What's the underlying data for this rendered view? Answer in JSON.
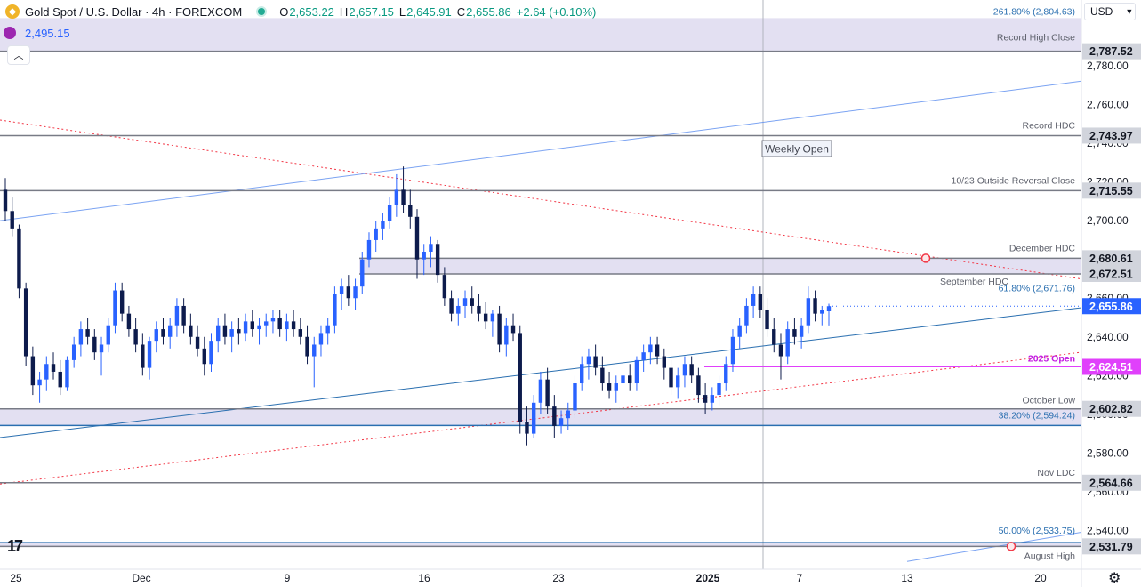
{
  "header": {
    "symbol": "Gold Spot / U.S. Dollar · 4h · FOREXCOM",
    "open_label": "O",
    "open": "2,653.22",
    "high_label": "H",
    "high": "2,657.15",
    "low_label": "L",
    "low": "2,645.91",
    "close_label": "C",
    "close": "2,655.86",
    "change": "+2.64 (+0.10%)"
  },
  "indicator_value": "2,495.15",
  "currency": "USD",
  "colors": {
    "up": "#2962ff",
    "down": "#0d1b4c",
    "level": "#787b86",
    "trend_red": "#f23645",
    "trend_blue": "#5b8def",
    "zone": "#d9d6ee",
    "current_price": "#2962ff",
    "open_2025": "#e040fb"
  },
  "chart_data": {
    "type": "candlestick",
    "x_tick_labels": [
      "25",
      "Dec",
      "9",
      "16",
      "23",
      "2025",
      "7",
      "13",
      "20"
    ],
    "y_ticks": [
      2540,
      2560,
      2580,
      2600,
      2620,
      2640,
      2660,
      2680,
      2700,
      2720,
      2740,
      2760,
      2780
    ],
    "y_range": [
      2520,
      2814
    ],
    "current_price": 2655.86,
    "levels": [
      {
        "label": "261.80% (2,804.63)",
        "price": 2804.63,
        "axis": ""
      },
      {
        "label": "Record High Close",
        "price": 2787.52,
        "axis": "2,787.52"
      },
      {
        "label": "Record HDC",
        "price": 2743.97,
        "axis": "2,743.97"
      },
      {
        "label": "10/23 Outside Reversal Close",
        "price": 2715.55,
        "axis": "2,715.55"
      },
      {
        "label": "December HDC",
        "price": 2680.61,
        "axis": "2,680.61"
      },
      {
        "label": "September HDC",
        "price": 2672.51,
        "axis": "2,672.51"
      },
      {
        "label": "61.80% (2,671.76)",
        "price": 2671.76,
        "axis": ""
      },
      {
        "label": "2025 Open",
        "price": 2624.51,
        "axis": "2,624.51"
      },
      {
        "label": "October Low",
        "price": 2602.82,
        "axis": "2,602.82"
      },
      {
        "label": "38.20% (2,594.24)",
        "price": 2594.24,
        "axis": ""
      },
      {
        "label": "Nov LDC",
        "price": 2564.66,
        "axis": "2,564.66"
      },
      {
        "label": "50.00% (2,533.75)",
        "price": 2533.75,
        "axis": ""
      },
      {
        "label": "August High",
        "price": 2531.79,
        "axis": "2,531.79"
      }
    ],
    "annotation": "Weekly Open",
    "candles": [
      [
        2716,
        2722,
        2700,
        2705
      ],
      [
        2705,
        2712,
        2692,
        2696
      ],
      [
        2696,
        2698,
        2660,
        2665
      ],
      [
        2665,
        2668,
        2625,
        2630
      ],
      [
        2630,
        2635,
        2610,
        2615
      ],
      [
        2615,
        2622,
        2606,
        2618
      ],
      [
        2618,
        2630,
        2612,
        2626
      ],
      [
        2626,
        2632,
        2618,
        2622
      ],
      [
        2622,
        2628,
        2610,
        2614
      ],
      [
        2614,
        2630,
        2612,
        2628
      ],
      [
        2628,
        2640,
        2624,
        2636
      ],
      [
        2636,
        2648,
        2630,
        2644
      ],
      [
        2644,
        2650,
        2636,
        2640
      ],
      [
        2640,
        2644,
        2628,
        2632
      ],
      [
        2632,
        2640,
        2620,
        2636
      ],
      [
        2636,
        2650,
        2632,
        2646
      ],
      [
        2646,
        2668,
        2642,
        2664
      ],
      [
        2664,
        2668,
        2648,
        2652
      ],
      [
        2652,
        2656,
        2640,
        2644
      ],
      [
        2644,
        2650,
        2632,
        2636
      ],
      [
        2636,
        2642,
        2620,
        2624
      ],
      [
        2624,
        2640,
        2618,
        2638
      ],
      [
        2638,
        2648,
        2632,
        2644
      ],
      [
        2644,
        2650,
        2636,
        2640
      ],
      [
        2640,
        2650,
        2634,
        2646
      ],
      [
        2646,
        2660,
        2640,
        2656
      ],
      [
        2656,
        2660,
        2642,
        2646
      ],
      [
        2646,
        2652,
        2636,
        2640
      ],
      [
        2640,
        2646,
        2630,
        2634
      ],
      [
        2634,
        2640,
        2620,
        2626
      ],
      [
        2626,
        2642,
        2622,
        2638
      ],
      [
        2638,
        2650,
        2632,
        2646
      ],
      [
        2646,
        2652,
        2636,
        2640
      ],
      [
        2640,
        2648,
        2632,
        2644
      ],
      [
        2644,
        2650,
        2636,
        2642
      ],
      [
        2642,
        2652,
        2638,
        2648
      ],
      [
        2648,
        2654,
        2640,
        2644
      ],
      [
        2644,
        2650,
        2636,
        2646
      ],
      [
        2646,
        2652,
        2640,
        2648
      ],
      [
        2648,
        2654,
        2642,
        2650
      ],
      [
        2650,
        2654,
        2640,
        2644
      ],
      [
        2644,
        2652,
        2638,
        2648
      ],
      [
        2648,
        2654,
        2640,
        2644
      ],
      [
        2644,
        2650,
        2636,
        2640
      ],
      [
        2640,
        2646,
        2626,
        2630
      ],
      [
        2630,
        2640,
        2614,
        2636
      ],
      [
        2636,
        2646,
        2630,
        2642
      ],
      [
        2642,
        2650,
        2636,
        2646
      ],
      [
        2646,
        2666,
        2642,
        2662
      ],
      [
        2662,
        2670,
        2654,
        2666
      ],
      [
        2666,
        2672,
        2656,
        2660
      ],
      [
        2660,
        2670,
        2654,
        2666
      ],
      [
        2666,
        2684,
        2662,
        2680
      ],
      [
        2680,
        2694,
        2676,
        2690
      ],
      [
        2690,
        2700,
        2684,
        2696
      ],
      [
        2696,
        2704,
        2690,
        2700
      ],
      [
        2700,
        2712,
        2696,
        2708
      ],
      [
        2708,
        2724,
        2702,
        2716
      ],
      [
        2716,
        2728,
        2704,
        2708
      ],
      [
        2708,
        2716,
        2696,
        2702
      ],
      [
        2702,
        2706,
        2670,
        2680
      ],
      [
        2680,
        2688,
        2672,
        2684
      ],
      [
        2684,
        2692,
        2676,
        2688
      ],
      [
        2688,
        2690,
        2668,
        2672
      ],
      [
        2672,
        2676,
        2656,
        2660
      ],
      [
        2660,
        2664,
        2648,
        2652
      ],
      [
        2652,
        2660,
        2646,
        2656
      ],
      [
        2656,
        2664,
        2650,
        2660
      ],
      [
        2660,
        2666,
        2652,
        2656
      ],
      [
        2656,
        2662,
        2648,
        2652
      ],
      [
        2652,
        2658,
        2644,
        2648
      ],
      [
        2648,
        2654,
        2640,
        2652
      ],
      [
        2652,
        2656,
        2632,
        2636
      ],
      [
        2636,
        2650,
        2630,
        2646
      ],
      [
        2646,
        2652,
        2638,
        2642
      ],
      [
        2642,
        2646,
        2590,
        2596
      ],
      [
        2596,
        2604,
        2584,
        2590
      ],
      [
        2590,
        2610,
        2588,
        2606
      ],
      [
        2606,
        2622,
        2600,
        2618
      ],
      [
        2618,
        2624,
        2600,
        2604
      ],
      [
        2604,
        2610,
        2588,
        2594
      ],
      [
        2594,
        2602,
        2590,
        2598
      ],
      [
        2598,
        2606,
        2592,
        2602
      ],
      [
        2602,
        2620,
        2598,
        2616
      ],
      [
        2616,
        2630,
        2612,
        2626
      ],
      [
        2626,
        2634,
        2618,
        2630
      ],
      [
        2630,
        2636,
        2620,
        2624
      ],
      [
        2624,
        2630,
        2612,
        2616
      ],
      [
        2616,
        2622,
        2608,
        2612
      ],
      [
        2612,
        2620,
        2606,
        2616
      ],
      [
        2616,
        2624,
        2610,
        2620
      ],
      [
        2620,
        2626,
        2612,
        2616
      ],
      [
        2616,
        2630,
        2612,
        2628
      ],
      [
        2628,
        2636,
        2622,
        2632
      ],
      [
        2632,
        2640,
        2626,
        2636
      ],
      [
        2636,
        2640,
        2626,
        2630
      ],
      [
        2630,
        2634,
        2618,
        2624
      ],
      [
        2624,
        2628,
        2610,
        2614
      ],
      [
        2614,
        2624,
        2608,
        2620
      ],
      [
        2620,
        2630,
        2614,
        2626
      ],
      [
        2626,
        2630,
        2616,
        2620
      ],
      [
        2620,
        2624,
        2606,
        2610
      ],
      [
        2610,
        2616,
        2600,
        2606
      ],
      [
        2606,
        2614,
        2602,
        2610
      ],
      [
        2610,
        2620,
        2604,
        2616
      ],
      [
        2616,
        2630,
        2612,
        2626
      ],
      [
        2626,
        2644,
        2622,
        2640
      ],
      [
        2640,
        2650,
        2634,
        2646
      ],
      [
        2646,
        2660,
        2642,
        2656
      ],
      [
        2656,
        2666,
        2650,
        2662
      ],
      [
        2662,
        2666,
        2650,
        2654
      ],
      [
        2654,
        2660,
        2640,
        2644
      ],
      [
        2644,
        2650,
        2632,
        2636
      ],
      [
        2636,
        2642,
        2618,
        2630
      ],
      [
        2630,
        2648,
        2626,
        2644
      ],
      [
        2644,
        2650,
        2636,
        2640
      ],
      [
        2640,
        2650,
        2634,
        2646
      ],
      [
        2646,
        2666,
        2642,
        2660
      ],
      [
        2660,
        2664,
        2648,
        2652
      ],
      [
        2652,
        2656,
        2646,
        2654
      ],
      [
        2653.22,
        2657.15,
        2645.91,
        2655.86
      ]
    ]
  }
}
